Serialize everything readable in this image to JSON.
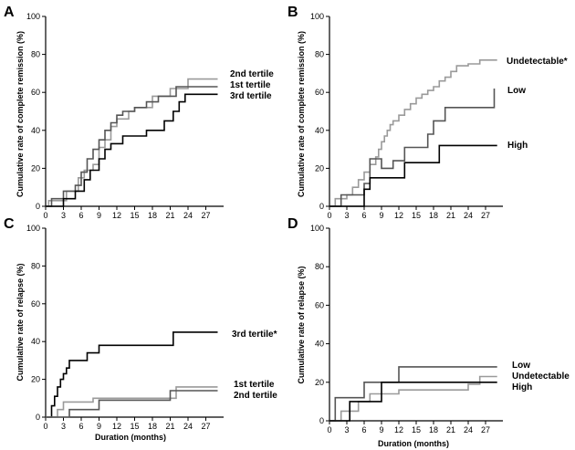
{
  "colors": {
    "black": "#000000",
    "dark_gray": "#555555",
    "light_gray": "#9a9a9a",
    "axis": "#000000"
  },
  "chart_data": [
    {
      "panel": "A",
      "type": "line",
      "step": true,
      "xlabel": "",
      "ylabel": "Cumulative rate of complete remission (%)",
      "xlim": [
        0,
        30
      ],
      "ylim": [
        0,
        100
      ],
      "xticks": [
        0,
        3,
        6,
        9,
        12,
        15,
        18,
        21,
        24,
        27
      ],
      "yticks": [
        0,
        20,
        40,
        60,
        80,
        100
      ],
      "series": [
        {
          "name": "2nd tertile",
          "color": "light_gray",
          "x": [
            0,
            0.5,
            3.5,
            5.5,
            6.5,
            8,
            9,
            10,
            11,
            12,
            14,
            15,
            18,
            21,
            24,
            29
          ],
          "y": [
            0,
            3,
            8,
            15,
            19,
            22,
            31,
            35,
            42,
            46,
            50,
            52,
            58,
            62,
            67,
            67
          ]
        },
        {
          "name": "1st tertile",
          "color": "dark_gray",
          "x": [
            0,
            1,
            3,
            5,
            6,
            7,
            8,
            9,
            10,
            11,
            12,
            13,
            15,
            17,
            19,
            22,
            29
          ],
          "y": [
            0,
            4,
            8,
            11,
            18,
            25,
            30,
            35,
            40,
            44,
            48,
            50,
            52,
            55,
            58,
            63,
            63
          ]
        },
        {
          "name": "3rd tertile",
          "color": "black",
          "x": [
            0,
            3,
            5,
            6.5,
            7.5,
            9,
            10,
            11,
            13,
            17,
            20,
            21.5,
            22.5,
            23.5,
            29
          ],
          "y": [
            0,
            4,
            8,
            14,
            19,
            25,
            30,
            33,
            37,
            40,
            45,
            50,
            55,
            59,
            59
          ]
        }
      ]
    },
    {
      "panel": "B",
      "type": "line",
      "step": true,
      "xlabel": "",
      "ylabel": "Cumulative rate of complete remission (%)",
      "xlim": [
        0,
        30
      ],
      "ylim": [
        0,
        100
      ],
      "xticks": [
        0,
        3,
        6,
        9,
        12,
        15,
        18,
        21,
        24,
        27
      ],
      "yticks": [
        0,
        20,
        40,
        60,
        80,
        100
      ],
      "series": [
        {
          "name": "Undetectable*",
          "color": "light_gray",
          "x": [
            0,
            1,
            3,
            4,
            5,
            6,
            7,
            8,
            8.5,
            9,
            9.5,
            10,
            10.5,
            11,
            12,
            13,
            14,
            15,
            16,
            17,
            18,
            19,
            20,
            21,
            22,
            24,
            26,
            29
          ],
          "y": [
            0,
            4,
            6,
            10,
            14,
            18,
            22,
            26,
            30,
            34,
            37,
            40,
            43,
            45,
            48,
            51,
            54,
            57,
            59,
            61,
            63,
            66,
            68,
            71,
            74,
            75,
            77,
            77
          ]
        },
        {
          "name": "Low",
          "color": "dark_gray",
          "x": [
            0,
            2,
            6,
            7,
            9,
            11,
            13,
            17,
            18,
            20,
            24,
            28.5
          ],
          "y": [
            0,
            6,
            12,
            25,
            20,
            24,
            31,
            38,
            45,
            52,
            52,
            62
          ]
        },
        {
          "name": "High",
          "color": "black",
          "x": [
            0,
            6,
            7,
            10,
            13,
            18,
            19,
            29
          ],
          "y": [
            0,
            9,
            15,
            15,
            23,
            23,
            32,
            32
          ]
        }
      ]
    },
    {
      "panel": "C",
      "type": "line",
      "step": true,
      "xlabel": "Duration (months)",
      "ylabel": "Cumulative rate of relapse (%)",
      "xlim": [
        0,
        30
      ],
      "ylim": [
        0,
        100
      ],
      "xticks": [
        0,
        3,
        6,
        9,
        12,
        15,
        18,
        21,
        24,
        27
      ],
      "yticks": [
        0,
        20,
        40,
        60,
        80,
        100
      ],
      "series": [
        {
          "name": "3rd tertile*",
          "color": "black",
          "x": [
            0,
            1,
            1.5,
            2,
            2.5,
            3,
            3.5,
            4,
            5,
            7,
            9,
            10,
            15,
            21.5,
            29
          ],
          "y": [
            0,
            6,
            11,
            16,
            20,
            23,
            26,
            30,
            30,
            34,
            38,
            38,
            38,
            45,
            45
          ]
        },
        {
          "name": "1st tertile",
          "color": "light_gray",
          "x": [
            0,
            2,
            3,
            5,
            8,
            22,
            29
          ],
          "y": [
            0,
            4,
            8,
            8,
            10,
            16,
            16
          ]
        },
        {
          "name": "2nd tertile",
          "color": "dark_gray",
          "x": [
            0,
            4,
            6,
            9,
            14,
            21,
            29
          ],
          "y": [
            0,
            4,
            4,
            9,
            9,
            14,
            14
          ]
        }
      ]
    },
    {
      "panel": "D",
      "type": "line",
      "step": true,
      "xlabel": "Duration (months)",
      "ylabel": "Cumulative rate of relapse (%)",
      "xlim": [
        0,
        30
      ],
      "ylim": [
        0,
        100
      ],
      "xticks": [
        0,
        3,
        6,
        9,
        12,
        15,
        18,
        21,
        24,
        27
      ],
      "yticks": [
        0,
        20,
        40,
        60,
        80,
        100
      ],
      "series": [
        {
          "name": "Low",
          "color": "dark_gray",
          "x": [
            0,
            1,
            3,
            6,
            12,
            29
          ],
          "y": [
            0,
            12,
            12,
            20,
            28,
            28
          ]
        },
        {
          "name": "Undetectable",
          "color": "light_gray",
          "x": [
            0,
            2,
            5,
            7,
            12,
            24,
            26,
            29
          ],
          "y": [
            0,
            5,
            10,
            14,
            16,
            19,
            23,
            23
          ]
        },
        {
          "name": "High",
          "color": "black",
          "x": [
            0,
            3.5,
            9,
            29
          ],
          "y": [
            0,
            10,
            20,
            20
          ]
        }
      ]
    }
  ]
}
